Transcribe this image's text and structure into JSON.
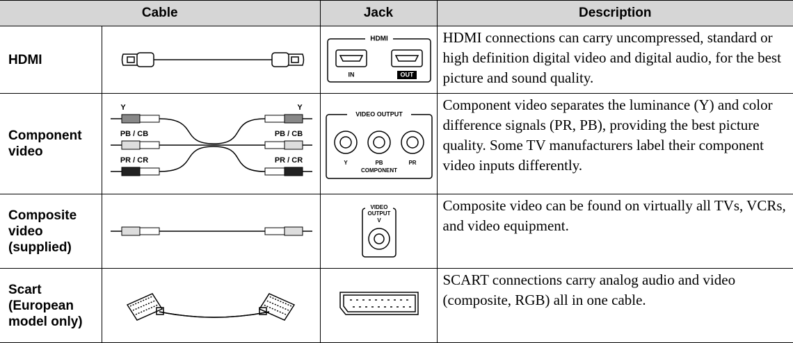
{
  "table": {
    "headers": [
      "Cable",
      "Jack",
      "Description"
    ],
    "rows": [
      {
        "name": "HDMI",
        "jack_labels": [
          "HDMI",
          "IN",
          "OUT"
        ],
        "description": "HDMI connections can carry uncompressed, standard or high definition digital video and digital audio, for the best picture and sound quality."
      },
      {
        "name": "Component video",
        "cable_labels": [
          "Y",
          "PB / CB",
          "PR / CR"
        ],
        "jack_labels": [
          "VIDEO OUTPUT",
          "Y",
          "PB",
          "PR",
          "COMPONENT"
        ],
        "description": "Component video separates the luminance (Y) and color difference signals (PR, PB), providing the best picture quality. Some TV manufacturers label their component video inputs differently."
      },
      {
        "name": "Composite video (supplied)",
        "jack_labels": [
          "VIDEO",
          "OUTPUT",
          "V"
        ],
        "description": "Composite video can be found on virtually all TVs, VCRs, and video equipment."
      },
      {
        "name": "Scart (European model only)",
        "description": "SCART connections carry analog audio and video (composite, RGB) all in one cable."
      }
    ]
  }
}
